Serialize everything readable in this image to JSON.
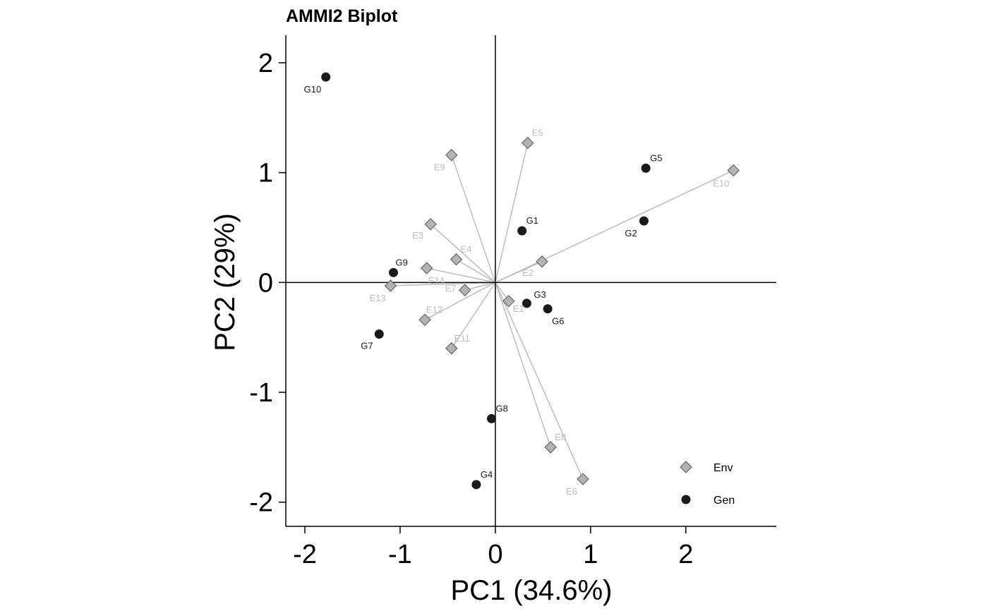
{
  "chart_data": {
    "type": "scatter",
    "title": "AMMI2 Biplot",
    "xlabel": "PC1 (34.6%)",
    "ylabel": "PC2 (29%)",
    "xlim": [
      -2.2,
      2.95
    ],
    "ylim": [
      -2.22,
      2.25
    ],
    "xticks": [
      -2,
      -1,
      0,
      1,
      2
    ],
    "yticks": [
      -2,
      -1,
      0,
      1,
      2
    ],
    "xtick_labels": [
      "-2",
      "-1",
      "0",
      "1",
      "2"
    ],
    "ytick_labels": [
      "-2",
      "-1",
      "0",
      "1",
      "2"
    ],
    "reference_lines": {
      "x": 0,
      "y": 0
    },
    "grid": false,
    "legend": {
      "placement": "bottom-right",
      "entries": [
        "Env",
        "Gen"
      ]
    },
    "colors": {
      "env_fill": "#b3b3b3",
      "env_stroke": "#555555",
      "env_vector": "#bdbdbd",
      "env_label": "#bdbdbd",
      "gen_fill": "#1a1a1a",
      "gen_label": "#1a1a1a",
      "axis": "#000000"
    },
    "series": [
      {
        "name": "Env",
        "marker": "diamond",
        "points": [
          {
            "label": "E1",
            "x": 0.14,
            "y": -0.17
          },
          {
            "label": "E2",
            "x": 0.49,
            "y": 0.19
          },
          {
            "label": "E3",
            "x": -0.68,
            "y": 0.53
          },
          {
            "label": "E4",
            "x": -0.41,
            "y": 0.21
          },
          {
            "label": "E5",
            "x": 0.34,
            "y": 1.27
          },
          {
            "label": "E6",
            "x": 0.92,
            "y": -1.79
          },
          {
            "label": "E7",
            "x": -0.32,
            "y": -0.07
          },
          {
            "label": "E8",
            "x": 0.58,
            "y": -1.5
          },
          {
            "label": "E9",
            "x": -0.46,
            "y": 1.16
          },
          {
            "label": "E10",
            "x": 2.5,
            "y": 1.02
          },
          {
            "label": "E11",
            "x": -0.46,
            "y": -0.6
          },
          {
            "label": "E12",
            "x": -0.74,
            "y": -0.34
          },
          {
            "label": "E13",
            "x": -1.1,
            "y": -0.03
          },
          {
            "label": "E14",
            "x": -0.72,
            "y": 0.13
          }
        ]
      },
      {
        "name": "Gen",
        "marker": "circle",
        "points": [
          {
            "label": "G1",
            "x": 0.28,
            "y": 0.47
          },
          {
            "label": "G2",
            "x": 1.56,
            "y": 0.56
          },
          {
            "label": "G3",
            "x": 0.33,
            "y": -0.19
          },
          {
            "label": "G4",
            "x": -0.2,
            "y": -1.84
          },
          {
            "label": "G5",
            "x": 1.58,
            "y": 1.04
          },
          {
            "label": "G6",
            "x": 0.55,
            "y": -0.24
          },
          {
            "label": "G7",
            "x": -1.22,
            "y": -0.47
          },
          {
            "label": "G8",
            "x": -0.04,
            "y": -1.24
          },
          {
            "label": "G9",
            "x": -1.07,
            "y": 0.09
          },
          {
            "label": "G10",
            "x": -1.78,
            "y": 1.87
          }
        ]
      }
    ]
  }
}
